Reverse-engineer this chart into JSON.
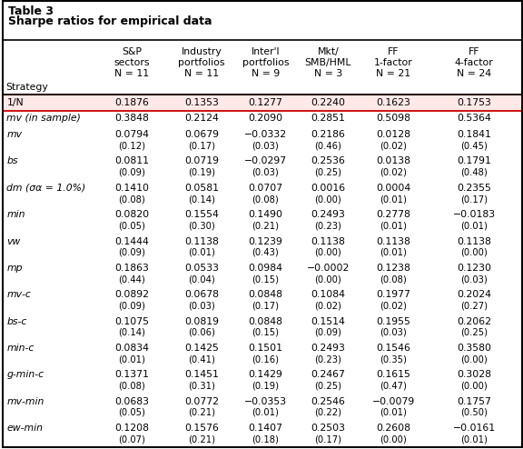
{
  "title_line1": "Table 3",
  "title_line2": "Sharpe ratios for empirical data",
  "rows": [
    {
      "label": "1/N",
      "vals": [
        "0.1876",
        "0.1353",
        "0.1277",
        "0.2240",
        "0.1623",
        "0.1753"
      ],
      "sub": null,
      "highlight": true
    },
    {
      "label": "mv (in sample)",
      "vals": [
        "0.3848",
        "0.2124",
        "0.2090",
        "0.2851",
        "0.5098",
        "0.5364"
      ],
      "sub": null,
      "highlight": false
    },
    {
      "label": "mv",
      "vals": [
        "0.0794",
        "0.0679",
        "−0.0332",
        "0.2186",
        "0.0128",
        "0.1841"
      ],
      "sub": [
        "(0.12)",
        "(0.17)",
        "(0.03)",
        "(0.46)",
        "(0.02)",
        "(0.45)"
      ],
      "highlight": false
    },
    {
      "label": "bs",
      "vals": [
        "0.0811",
        "0.0719",
        "−0.0297",
        "0.2536",
        "0.0138",
        "0.1791"
      ],
      "sub": [
        "(0.09)",
        "(0.19)",
        "(0.03)",
        "(0.25)",
        "(0.02)",
        "(0.48)"
      ],
      "highlight": false
    },
    {
      "label": "dm (σα = 1.0%)",
      "vals": [
        "0.1410",
        "0.0581",
        "0.0707",
        "0.0016",
        "0.0004",
        "0.2355"
      ],
      "sub": [
        "(0.08)",
        "(0.14)",
        "(0.08)",
        "(0.00)",
        "(0.01)",
        "(0.17)"
      ],
      "highlight": false
    },
    {
      "label": "min",
      "vals": [
        "0.0820",
        "0.1554",
        "0.1490",
        "0.2493",
        "0.2778",
        "−0.0183"
      ],
      "sub": [
        "(0.05)",
        "(0.30)",
        "(0.21)",
        "(0.23)",
        "(0.01)",
        "(0.01)"
      ],
      "highlight": false
    },
    {
      "label": "vw",
      "vals": [
        "0.1444",
        "0.1138",
        "0.1239",
        "0.1138",
        "0.1138",
        "0.1138"
      ],
      "sub": [
        "(0.09)",
        "(0.01)",
        "(0.43)",
        "(0.00)",
        "(0.01)",
        "(0.00)"
      ],
      "highlight": false
    },
    {
      "label": "mp",
      "vals": [
        "0.1863",
        "0.0533",
        "0.0984",
        "−0.0002",
        "0.1238",
        "0.1230"
      ],
      "sub": [
        "(0.44)",
        "(0.04)",
        "(0.15)",
        "(0.00)",
        "(0.08)",
        "(0.03)"
      ],
      "highlight": false
    },
    {
      "label": "mv-c",
      "vals": [
        "0.0892",
        "0.0678",
        "0.0848",
        "0.1084",
        "0.1977",
        "0.2024"
      ],
      "sub": [
        "(0.09)",
        "(0.03)",
        "(0.17)",
        "(0.02)",
        "(0.02)",
        "(0.27)"
      ],
      "highlight": false
    },
    {
      "label": "bs-c",
      "vals": [
        "0.1075",
        "0.0819",
        "0.0848",
        "0.1514",
        "0.1955",
        "0.2062"
      ],
      "sub": [
        "(0.14)",
        "(0.06)",
        "(0.15)",
        "(0.09)",
        "(0.03)",
        "(0.25)"
      ],
      "highlight": false
    },
    {
      "label": "min-c",
      "vals": [
        "0.0834",
        "0.1425",
        "0.1501",
        "0.2493",
        "0.1546",
        "0.3580"
      ],
      "sub": [
        "(0.01)",
        "(0.41)",
        "(0.16)",
        "(0.23)",
        "(0.35)",
        "(0.00)"
      ],
      "highlight": false
    },
    {
      "label": "g-min-c",
      "vals": [
        "0.1371",
        "0.1451",
        "0.1429",
        "0.2467",
        "0.1615",
        "0.3028"
      ],
      "sub": [
        "(0.08)",
        "(0.31)",
        "(0.19)",
        "(0.25)",
        "(0.47)",
        "(0.00)"
      ],
      "highlight": false
    },
    {
      "label": "mv-min",
      "vals": [
        "0.0683",
        "0.0772",
        "−0.0353",
        "0.2546",
        "−0.0079",
        "0.1757"
      ],
      "sub": [
        "(0.05)",
        "(0.21)",
        "(0.01)",
        "(0.22)",
        "(0.01)",
        "(0.50)"
      ],
      "highlight": false
    },
    {
      "label": "ew-min",
      "vals": [
        "0.1208",
        "0.1576",
        "0.1407",
        "0.2503",
        "0.2608",
        "−0.0161"
      ],
      "sub": [
        "(0.07)",
        "(0.21)",
        "(0.18)",
        "(0.17)",
        "(0.00)",
        "(0.01)"
      ],
      "highlight": false
    }
  ],
  "col_headers": [
    "S&P\nsectors\nN = 11",
    "Industry\nportfolios\nN = 11",
    "Inter'l\nportfolios\nN = 9",
    "Mkt/\nSMB/HML\nN = 3",
    "FF\n1-factor\nN = 21",
    "FF\n4-factor\nN = 24"
  ],
  "highlight_bg": "#FFE8E8",
  "highlight_border": "#CC0000",
  "table_bg": "#FFFFFF",
  "border_color": "#000000",
  "text_color": "#000000",
  "header_fontsize": 7.8,
  "cell_fontsize": 7.8,
  "sub_fontsize": 7.2,
  "title_fontsize": 9.0
}
